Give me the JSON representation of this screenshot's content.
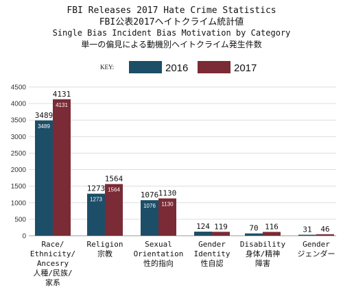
{
  "title_lines": [
    "FBI Releases 2017 Hate Crime Statistics",
    "FBI公表2017ヘイトクライム統計値",
    "Single Bias Incident Bias Motivation by Category",
    "単一の偏見による動機別ヘイトクライム発生件数"
  ],
  "legend": {
    "key_label": "KEY:"
  },
  "colors": {
    "2016": "#1c4e68",
    "2017": "#7a2b35",
    "grid": "#dddddd",
    "axis": "#999999"
  },
  "chart_data": {
    "type": "bar",
    "categories": [
      [
        "Race/",
        "Ethnicity/",
        "Ancesry",
        "人種/民族/",
        "家系"
      ],
      [
        "Religion",
        "宗教"
      ],
      [
        "Sexual",
        "Orientation",
        "性的指向"
      ],
      [
        "Gender",
        "Identity",
        "性自認"
      ],
      [
        "Disability",
        "身体/精神",
        "障害"
      ],
      [
        "Gender",
        "ジェンダー"
      ]
    ],
    "series": [
      {
        "name": "2016",
        "values": [
          3489,
          1273,
          1076,
          124,
          70,
          31
        ]
      },
      {
        "name": "2017",
        "values": [
          4131,
          1564,
          1130,
          119,
          116,
          46
        ]
      }
    ],
    "inner_labels": [
      [
        "3489",
        "1273",
        "1076",
        "",
        "",
        ""
      ],
      [
        "4131",
        "1564",
        "1130",
        "",
        "",
        ""
      ]
    ],
    "ylim": [
      0,
      4500
    ],
    "yticks": [
      0,
      500,
      1000,
      1500,
      2000,
      2500,
      3000,
      3500,
      4000,
      4500
    ],
    "grid": true,
    "legend_position": "top-center"
  }
}
